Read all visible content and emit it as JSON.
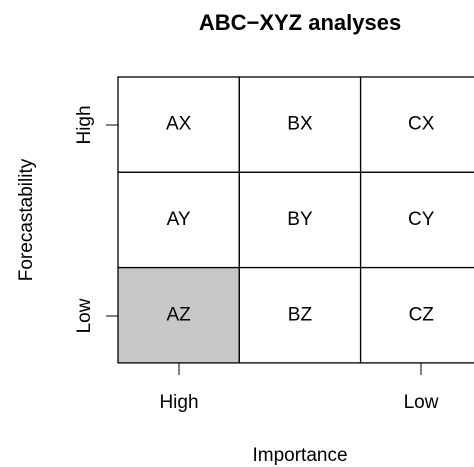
{
  "title": "ABC−XYZ analyses",
  "x_axis": {
    "label": "Importance",
    "ticks": [
      "High",
      "Low"
    ]
  },
  "y_axis": {
    "label": "Forecastability",
    "ticks": [
      "High",
      "Low"
    ]
  },
  "grid": {
    "rows": [
      [
        {
          "label": "AX",
          "color": "#ffffff"
        },
        {
          "label": "BX",
          "color": "#ffffff"
        },
        {
          "label": "CX",
          "color": "#ffffff"
        }
      ],
      [
        {
          "label": "AY",
          "color": "#ffffff"
        },
        {
          "label": "BY",
          "color": "#ffffff"
        },
        {
          "label": "CY",
          "color": "#ffffff"
        }
      ],
      [
        {
          "label": "AZ",
          "color": "#c8c8c8"
        },
        {
          "label": "BZ",
          "color": "#ffffff"
        },
        {
          "label": "CZ",
          "color": "#ffffff"
        }
      ]
    ]
  }
}
